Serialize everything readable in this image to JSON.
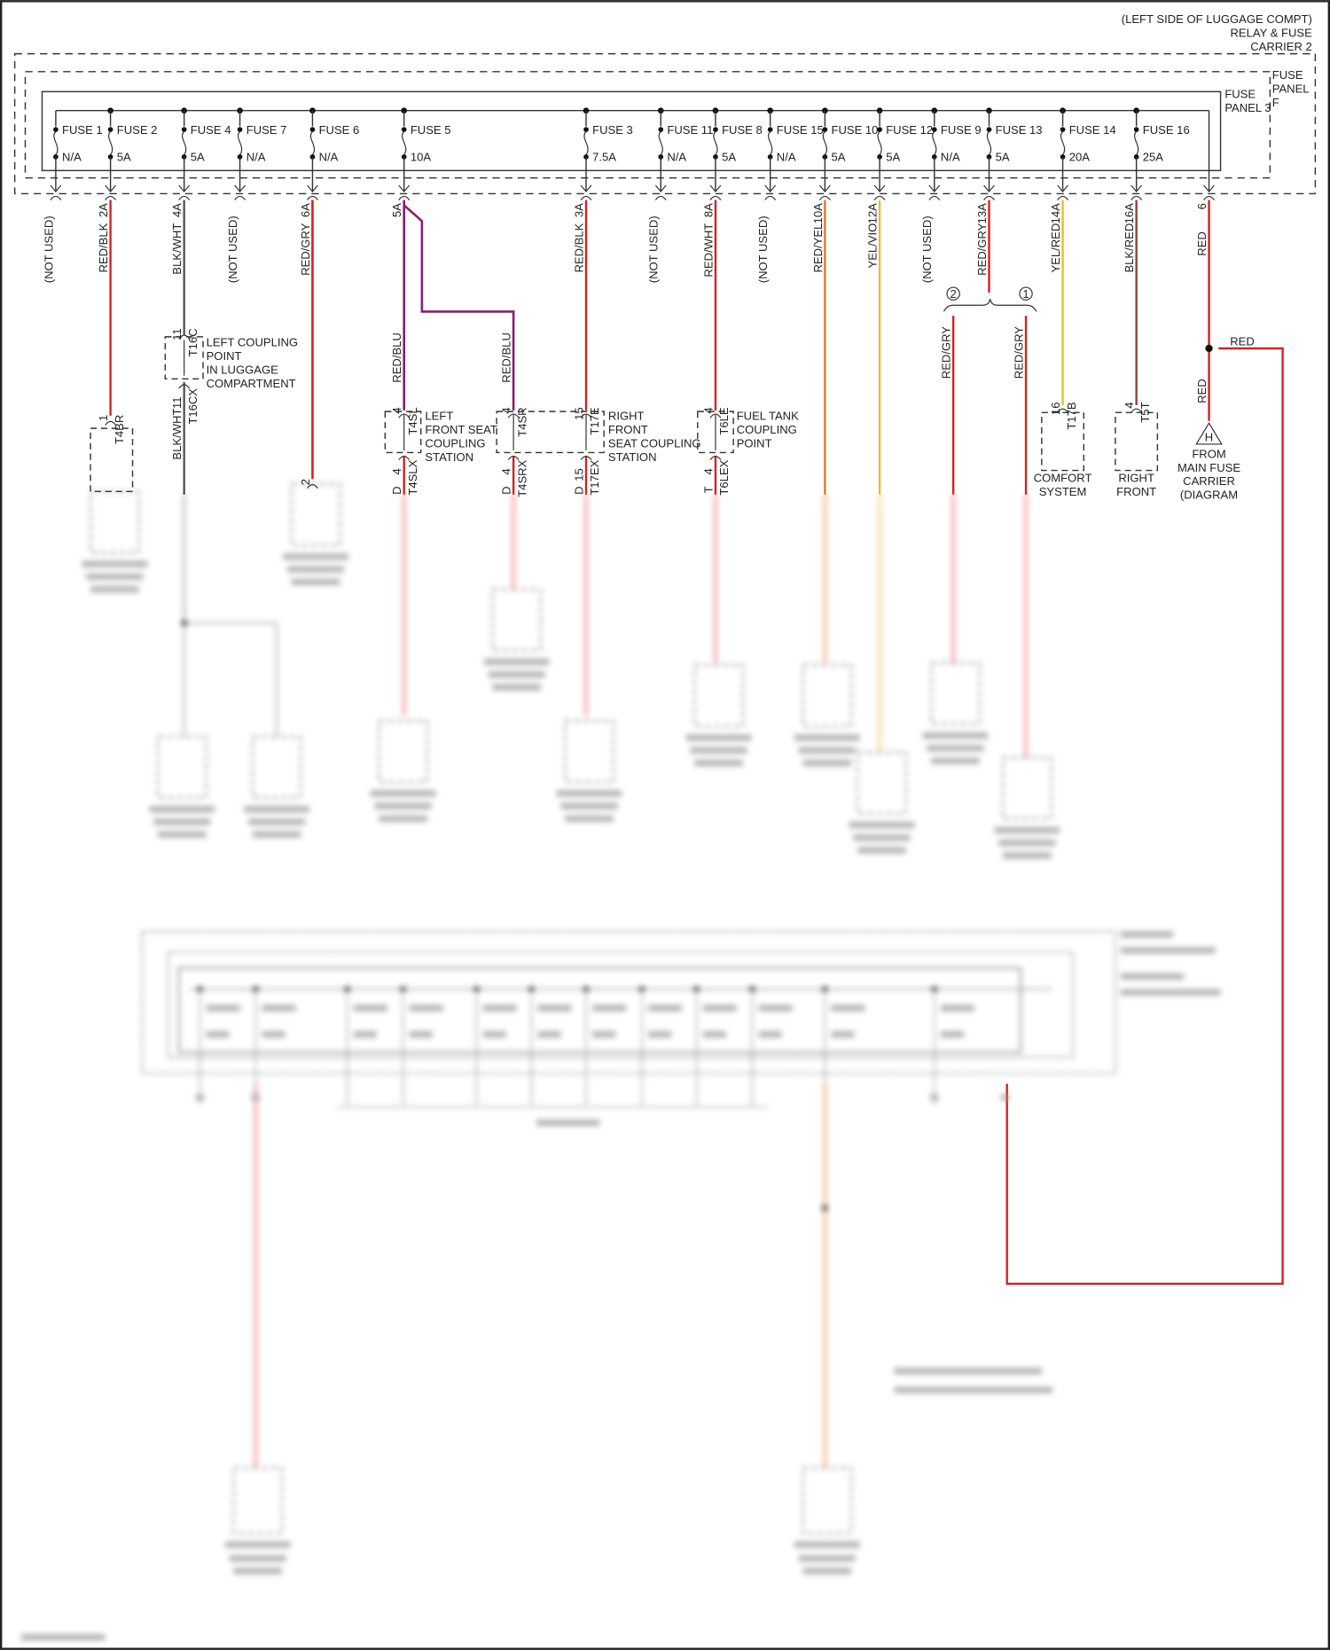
{
  "header": {
    "location_lines": [
      "(LEFT SIDE OF LUGGAGE COMPT)",
      "RELAY & FUSE",
      "CARRIER 2"
    ],
    "fuse_panel_f": [
      "FUSE",
      "PANEL",
      "F"
    ],
    "fuse_panel_3": [
      "FUSE",
      "PANEL 3"
    ]
  },
  "fuses": [
    {
      "label": "FUSE 1",
      "rating": "N/A",
      "pin": "",
      "wire": "(NOT USED)",
      "color": "#444444"
    },
    {
      "label": "FUSE 2",
      "rating": "5A",
      "pin": "2A",
      "wire": "RED/BLK",
      "color": "#d42020"
    },
    {
      "label": "FUSE 4",
      "rating": "5A",
      "pin": "4A",
      "wire": "BLK/WHT",
      "color": "#555555"
    },
    {
      "label": "FUSE 7",
      "rating": "N/A",
      "pin": "",
      "wire": "(NOT USED)",
      "color": "#444444"
    },
    {
      "label": "FUSE 6",
      "rating": "N/A",
      "pin": "6A",
      "wire": "RED/GRY",
      "color": "#d42020"
    },
    {
      "label": "FUSE 5",
      "rating": "10A",
      "pin": "5A",
      "wire": "",
      "color": "#8a1e6e"
    },
    {
      "label": "FUSE 3",
      "rating": "7.5A",
      "pin": "3A",
      "wire": "RED/BLK",
      "color": "#d42020"
    },
    {
      "label": "FUSE 11",
      "rating": "N/A",
      "pin": "",
      "wire": "(NOT USED)",
      "color": "#444444"
    },
    {
      "label": "FUSE 8",
      "rating": "5A",
      "pin": "8A",
      "wire": "RED/WHT",
      "color": "#d42020"
    },
    {
      "label": "FUSE 15",
      "rating": "N/A",
      "pin": "",
      "wire": "(NOT USED)",
      "color": "#444444"
    },
    {
      "label": "FUSE 10",
      "rating": "5A",
      "pin": "10A",
      "wire": "RED/YEL",
      "color": "#e8742a"
    },
    {
      "label": "FUSE 12",
      "rating": "5A",
      "pin": "12A",
      "wire": "YEL/VIO",
      "color": "#f0b830"
    },
    {
      "label": "FUSE 9",
      "rating": "N/A",
      "pin": "",
      "wire": "(NOT USED)",
      "color": "#444444"
    },
    {
      "label": "FUSE 13",
      "rating": "5A",
      "pin": "13A",
      "wire": "RED/GRY",
      "color": "#d42020"
    },
    {
      "label": "FUSE 14",
      "rating": "20A",
      "pin": "14A",
      "wire": "YEL/RED",
      "color": "#e8c020"
    },
    {
      "label": "FUSE 16",
      "rating": "25A",
      "pin": "16A",
      "wire": "BLK/RED",
      "color": "#8a4040"
    }
  ],
  "feed": {
    "pin": "6",
    "wire": "RED",
    "branch_wire": "RED",
    "lower_wire": "RED",
    "marker": "H",
    "source_lines": [
      "FROM",
      "MAIN FUSE",
      "CARRIER",
      "(DIAGRAM"
    ]
  },
  "fuse5_branches": {
    "left_wire": "RED/BLU",
    "right_wire": "RED/BLU"
  },
  "splice": {
    "num_left": "2",
    "num_right": "1",
    "left_wire": "RED/GRY",
    "right_wire": "RED/GRY"
  },
  "connectors": {
    "t4br": {
      "pin": "1",
      "name": "T4BR"
    },
    "t16c": {
      "pin": "11",
      "name": "T16C"
    },
    "t16cx": {
      "pin": "11",
      "name": "T16CX",
      "wire": "BLK/WHT"
    },
    "fuse6_end": {
      "pin": "2"
    },
    "t4sl": {
      "pin": "4",
      "name": "T4SL"
    },
    "t4slx": {
      "pin": "4",
      "name": "T4SLX",
      "wire": "D"
    },
    "t4sr": {
      "pin": "4",
      "name": "T4SR"
    },
    "t4srx": {
      "pin": "4",
      "name": "T4SRX",
      "wire": "D"
    },
    "t17e": {
      "pin": "15",
      "name": "T17E"
    },
    "t17ex": {
      "pin": "15",
      "name": "T17EX",
      "wire": "D"
    },
    "t6le": {
      "pin": "4",
      "name": "T6LE"
    },
    "t6lex": {
      "pin": "4",
      "name": "T6LEX",
      "wire": "T"
    },
    "t17b": {
      "pin": "16",
      "name": "T17B"
    },
    "t5t": {
      "pin": "4",
      "name": "T5T"
    }
  },
  "coupling_points": {
    "left_luggage": [
      "LEFT COUPLING",
      "POINT",
      "IN LUGGAGE",
      "COMPARTMENT"
    ],
    "left_front_seat": [
      "LEFT",
      "FRONT SEAT",
      "COUPLING",
      "STATION"
    ],
    "right_front_seat": [
      "RIGHT",
      "FRONT",
      "SEAT COUPLING",
      "STATION"
    ],
    "fuel_tank": [
      "FUEL TANK",
      "COUPLING",
      "POINT"
    ]
  },
  "components": {
    "comfort": [
      "COMFORT",
      "SYSTEM"
    ],
    "right_front": [
      "RIGHT",
      "FRONT"
    ]
  }
}
